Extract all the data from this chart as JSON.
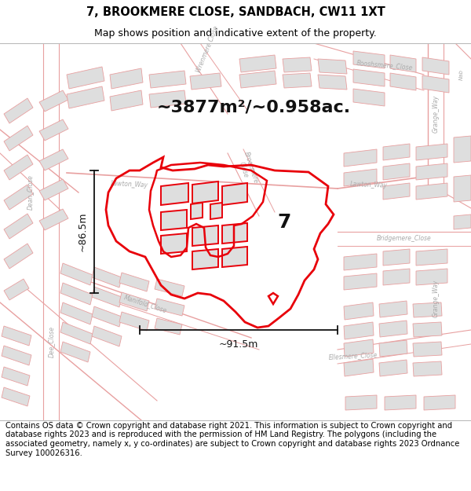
{
  "title": "7, BROOKMERE CLOSE, SANDBACH, CW11 1XT",
  "subtitle": "Map shows position and indicative extent of the property.",
  "area_text": "~3877m²/~0.958ac.",
  "label_number": "7",
  "dim_horizontal": "~91.5m",
  "dim_vertical": "~86.5m",
  "footer": "Contains OS data © Crown copyright and database right 2021. This information is subject to Crown copyright and database rights 2023 and is reproduced with the permission of HM Land Registry. The polygons (including the associated geometry, namely x, y co-ordinates) are subject to Crown copyright and database rights 2023 Ordnance Survey 100026316.",
  "bg_color": "#ffffff",
  "map_bg": "#ffffff",
  "building_fill": "#dedede",
  "building_edge_bg": "#e8a0a0",
  "road_color_bg": "#e8a0a0",
  "highlight_color": "#e8000a",
  "dim_color": "#111111",
  "title_fontsize": 10.5,
  "subtitle_fontsize": 9,
  "area_fontsize": 16,
  "label_fontsize": 18,
  "dim_fontsize": 9,
  "footer_fontsize": 7.2,
  "road_label_color": "#aaaaaa",
  "road_label_fontsize": 5.5
}
